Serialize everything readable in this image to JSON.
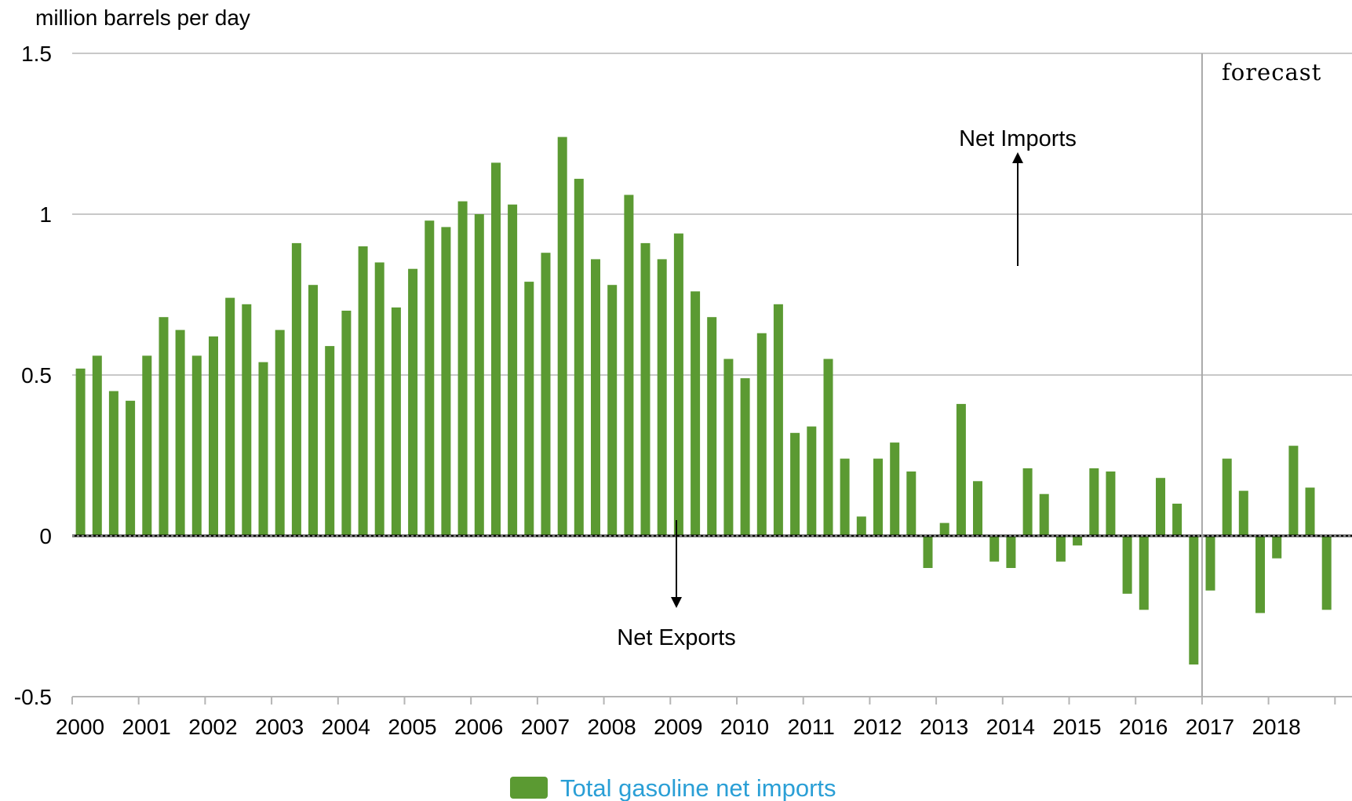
{
  "chart_data": {
    "type": "bar",
    "title": "",
    "ylabel": "million barrels per day",
    "xlabel": "",
    "ylim": [
      -0.5,
      1.5
    ],
    "yticks": [
      "1.5",
      "1",
      "0.5",
      "0",
      "-0.5"
    ],
    "ytick_values": [
      1.5,
      1,
      0.5,
      0,
      -0.5
    ],
    "xtick_labels": [
      "2000",
      "2001",
      "2002",
      "2003",
      "2004",
      "2005",
      "2006",
      "2007",
      "2008",
      "2009",
      "2010",
      "2011",
      "2012",
      "2013",
      "2014",
      "2015",
      "2016",
      "2017",
      "2018"
    ],
    "grid": true,
    "legend_position": "bottom-center",
    "series": [
      {
        "name": "Total gasoline net imports",
        "color": "#5b9a32",
        "values": [
          0.52,
          0.56,
          0.45,
          0.42,
          0.56,
          0.68,
          0.64,
          0.56,
          0.62,
          0.74,
          0.72,
          0.54,
          0.64,
          0.91,
          0.78,
          0.59,
          0.7,
          0.9,
          0.85,
          0.71,
          0.83,
          0.98,
          0.96,
          1.04,
          1.0,
          1.16,
          1.03,
          0.79,
          0.88,
          1.24,
          1.11,
          0.86,
          0.78,
          1.06,
          0.91,
          0.86,
          0.94,
          0.76,
          0.68,
          0.55,
          0.49,
          0.63,
          0.72,
          0.32,
          0.34,
          0.55,
          0.24,
          0.06,
          0.24,
          0.29,
          0.2,
          -0.1,
          0.04,
          0.41,
          0.17,
          -0.08,
          -0.1,
          0.21,
          0.13,
          -0.08,
          -0.03,
          0.21,
          0.2,
          -0.18,
          -0.23,
          0.18,
          0.1,
          -0.4,
          -0.17,
          0.24,
          0.14,
          -0.24,
          -0.07,
          0.28,
          0.15,
          -0.23
        ]
      }
    ],
    "forecast_start": 2017,
    "annotations": {
      "forecast": "forecast",
      "net_imports": "Net Imports",
      "net_exports": "Net Exports"
    }
  }
}
